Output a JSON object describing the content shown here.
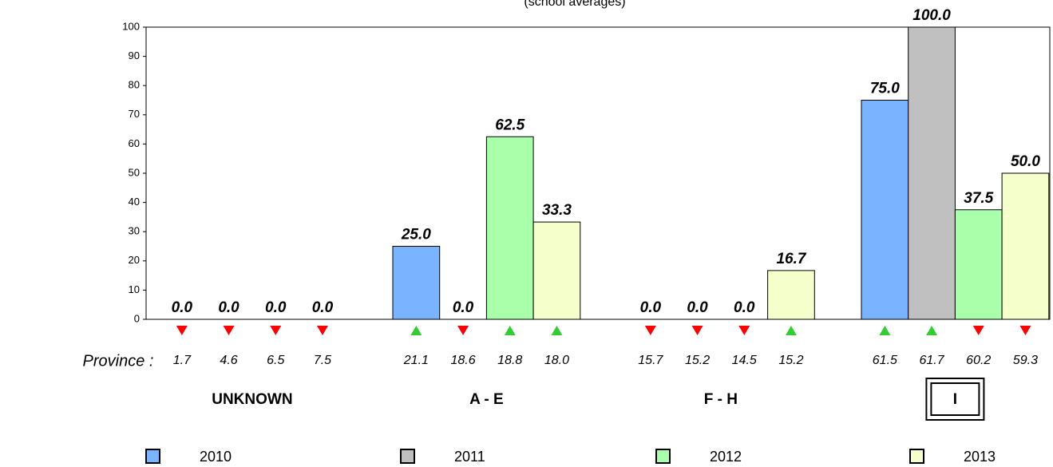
{
  "chart_data": {
    "type": "bar",
    "subtitle": "(school averages)",
    "categories": [
      "UNKNOWN",
      "A - E",
      "F -  H",
      "I"
    ],
    "highlight_index": 3,
    "province_label": "Province :",
    "ylim": [
      0,
      100
    ],
    "yticks": [
      0,
      10,
      20,
      30,
      40,
      50,
      60,
      70,
      80,
      90,
      100
    ],
    "series": [
      {
        "name": "2010",
        "color": "#7ab3ff",
        "values": [
          0,
          25,
          0,
          75
        ],
        "value_labels": [
          "0.0",
          "25.0",
          "0.0",
          "75.0"
        ],
        "province": [
          1.7,
          21.1,
          15.7,
          61.5
        ],
        "province_labels": [
          "1.7",
          "21.1",
          "15.7",
          "61.5"
        ]
      },
      {
        "name": "2011",
        "color": "#c0c0c0",
        "values": [
          0,
          0,
          0,
          100
        ],
        "value_labels": [
          "0.0",
          "0.0",
          "0.0",
          "100.0"
        ],
        "province": [
          4.6,
          18.6,
          15.2,
          61.7
        ],
        "province_labels": [
          "4.6",
          "18.6",
          "15.2",
          "61.7"
        ]
      },
      {
        "name": "2012",
        "color": "#aaffaa",
        "values": [
          0,
          62.5,
          0,
          37.5
        ],
        "value_labels": [
          "0.0",
          "62.5",
          "0.0",
          "37.5"
        ],
        "province": [
          6.5,
          18.8,
          14.5,
          60.2
        ],
        "province_labels": [
          "6.5",
          "18.8",
          "14.5",
          "60.2"
        ]
      },
      {
        "name": "2013",
        "color": "#f5ffcc",
        "values": [
          0,
          33.3,
          16.7,
          50
        ],
        "value_labels": [
          "0.0",
          "33.3",
          "16.7",
          "50.0"
        ],
        "province": [
          7.5,
          18.0,
          15.2,
          59.3
        ],
        "province_labels": [
          "7.5",
          "18.0",
          "15.2",
          "59.3"
        ]
      }
    ]
  }
}
